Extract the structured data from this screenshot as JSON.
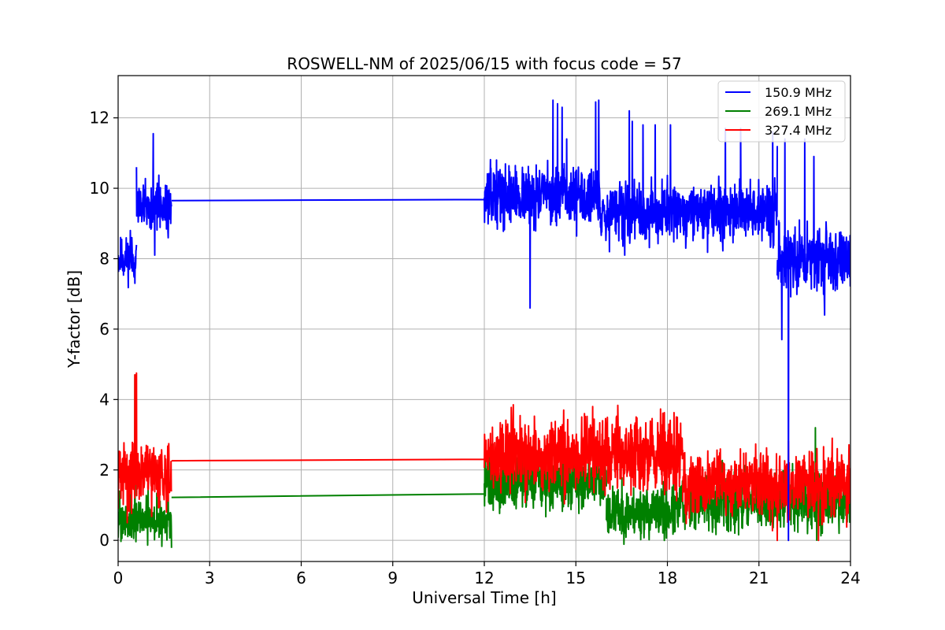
{
  "chart_data": {
    "type": "line",
    "title": "ROSWELL-NM of 2025/06/15 with focus code = 57",
    "xlabel": "Universal Time [h]",
    "ylabel": "Y-factor [dB]",
    "xlim": [
      0,
      24
    ],
    "ylim": [
      -0.6,
      13.2
    ],
    "xticks": [
      0,
      3,
      6,
      9,
      12,
      15,
      18,
      21,
      24
    ],
    "yticks": [
      0,
      2,
      4,
      6,
      8,
      10,
      12
    ],
    "grid": true,
    "legend_position": "top-right",
    "series": [
      {
        "name": "150.9 MHz",
        "color": "#0000ff",
        "segments": [
          {
            "x_start": 0.0,
            "x_end": 0.6,
            "base": 8.0,
            "noise": 0.6,
            "seed": 11,
            "spikes": [
              [
                0.4,
                8.8
              ],
              [
                0.55,
                7.3
              ]
            ]
          },
          {
            "x_start": 0.6,
            "x_end": 1.75,
            "base": 9.5,
            "noise": 0.7,
            "seed": 12,
            "spikes": [
              [
                0.6,
                10.6
              ],
              [
                1.15,
                11.55
              ],
              [
                1.2,
                8.1
              ]
            ]
          },
          {
            "x": [
              1.75,
              12.0
            ],
            "y": [
              9.65,
              9.68
            ]
          },
          {
            "x_start": 12.0,
            "x_end": 15.8,
            "base": 9.8,
            "noise": 0.8,
            "seed": 13,
            "spikes": [
              [
                13.5,
                6.6
              ],
              [
                14.25,
                12.5
              ],
              [
                14.4,
                12.4
              ],
              [
                14.55,
                12.3
              ],
              [
                14.7,
                11.4
              ],
              [
                15.65,
                12.45
              ],
              [
                15.75,
                12.5
              ]
            ]
          },
          {
            "x_start": 15.8,
            "x_end": 21.6,
            "base": 9.3,
            "noise": 0.8,
            "seed": 14,
            "spikes": [
              [
                16.1,
                8.2
              ],
              [
                16.6,
                8.1
              ],
              [
                16.75,
                12.2
              ],
              [
                16.85,
                11.9
              ],
              [
                17.2,
                11.8
              ],
              [
                17.6,
                11.8
              ],
              [
                18.1,
                11.8
              ],
              [
                18.6,
                8.3
              ],
              [
                19.9,
                11.7
              ],
              [
                20.4,
                11.7
              ],
              [
                21.45,
                11.6
              ],
              [
                21.6,
                11.2
              ]
            ]
          },
          {
            "x_start": 21.6,
            "x_end": 24.0,
            "base": 8.0,
            "noise": 0.9,
            "seed": 15,
            "spikes": [
              [
                21.75,
                5.7
              ],
              [
                21.85,
                11.4
              ],
              [
                21.97,
                0.0
              ],
              [
                22.5,
                11.4
              ],
              [
                22.8,
                10.9
              ],
              [
                23.15,
                6.4
              ]
            ]
          }
        ]
      },
      {
        "name": "269.1 MHz",
        "color": "#008000",
        "segments": [
          {
            "x_start": 0.0,
            "x_end": 1.75,
            "base": 0.6,
            "noise": 0.6,
            "seed": 21,
            "spikes": [
              [
                0.05,
                1.4
              ],
              [
                0.55,
                4.7
              ]
            ]
          },
          {
            "x": [
              1.75,
              12.0
            ],
            "y": [
              1.22,
              1.32
            ]
          },
          {
            "x_start": 12.0,
            "x_end": 16.0,
            "base": 1.7,
            "noise": 0.8,
            "seed": 22,
            "spikes": [
              [
                12.6,
                2.5
              ],
              [
                14.1,
                2.1
              ]
            ]
          },
          {
            "x_start": 16.0,
            "x_end": 18.4,
            "base": 0.8,
            "noise": 0.7,
            "seed": 23,
            "spikes": [
              [
                17.9,
                0.0
              ]
            ]
          },
          {
            "x_start": 18.4,
            "x_end": 24.0,
            "base": 1.1,
            "noise": 0.8,
            "seed": 24,
            "spikes": [
              [
                22.85,
                3.2
              ]
            ]
          }
        ]
      },
      {
        "name": "327.4 MHz",
        "color": "#ff0000",
        "segments": [
          {
            "x_start": 0.0,
            "x_end": 1.75,
            "base": 1.9,
            "noise": 0.9,
            "seed": 31,
            "spikes": [
              [
                0.55,
                4.7
              ],
              [
                0.6,
                4.75
              ],
              [
                0.3,
                0.5
              ]
            ]
          },
          {
            "x": [
              1.75,
              12.0
            ],
            "y": [
              2.26,
              2.3
            ]
          },
          {
            "x_start": 12.0,
            "x_end": 18.5,
            "base": 2.4,
            "noise": 1.0,
            "seed": 32,
            "spikes": [
              [
                12.95,
                3.85
              ],
              [
                14.6,
                3.7
              ],
              [
                15.55,
                3.8
              ]
            ]
          },
          {
            "x_start": 18.5,
            "x_end": 24.0,
            "base": 1.6,
            "noise": 0.9,
            "seed": 33,
            "spikes": [
              [
                21.6,
                0.0
              ],
              [
                22.95,
                0.0
              ],
              [
                23.4,
                2.9
              ]
            ]
          }
        ]
      }
    ]
  }
}
